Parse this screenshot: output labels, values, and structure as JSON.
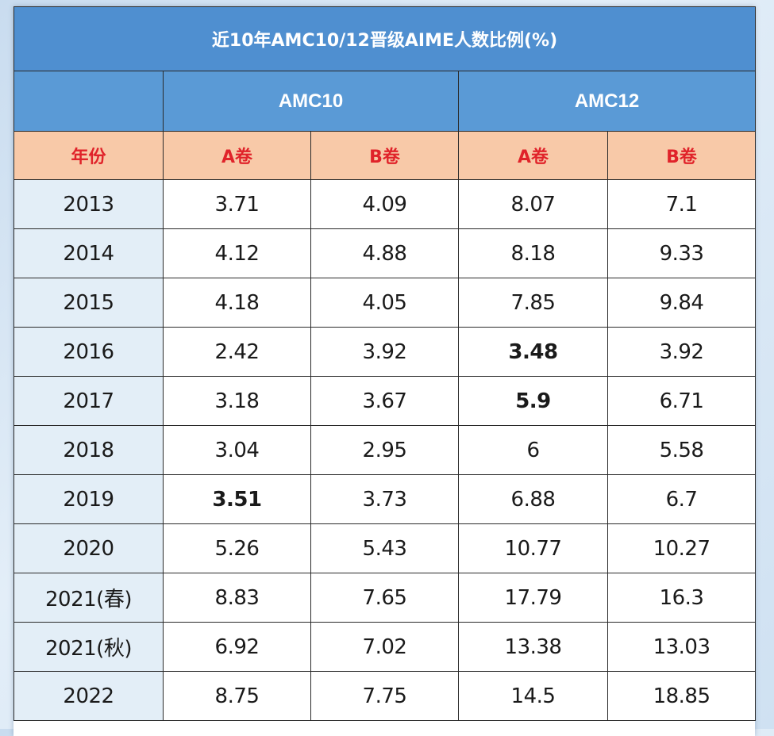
{
  "title": "近10年AMC10/12晋级AIME人数比例(%)",
  "groups": [
    "AMC10",
    "AMC12"
  ],
  "subheaders": [
    "年份",
    "A卷",
    "B卷",
    "A卷",
    "B卷"
  ],
  "rows": [
    {
      "year": "2013",
      "values": [
        "3.71",
        "4.09",
        "8.07",
        "7.1"
      ]
    },
    {
      "year": "2014",
      "values": [
        "4.12",
        "4.88",
        "8.18",
        "9.33"
      ]
    },
    {
      "year": "2015",
      "values": [
        "4.18",
        "4.05",
        "7.85",
        "9.84"
      ]
    },
    {
      "year": "2016",
      "values": [
        "2.42",
        "3.92",
        "3.48",
        "3.92"
      ]
    },
    {
      "year": "2017",
      "values": [
        "3.18",
        "3.67",
        "5.9",
        "6.71"
      ]
    },
    {
      "year": "2018",
      "values": [
        "3.04",
        "2.95",
        "6",
        "5.58"
      ]
    },
    {
      "year": "2019",
      "values": [
        "3.51",
        "3.73",
        "6.88",
        "6.7"
      ]
    },
    {
      "year": "2020",
      "values": [
        "5.26",
        "5.43",
        "10.77",
        "10.27"
      ]
    },
    {
      "year": "2021(春)",
      "values": [
        "8.83",
        "7.65",
        "17.79",
        "16.3"
      ]
    },
    {
      "year": "2021(秋)",
      "values": [
        "6.92",
        "7.02",
        "13.38",
        "13.03"
      ]
    },
    {
      "year": "2022",
      "values": [
        "8.75",
        "7.75",
        "14.5",
        "18.85"
      ]
    }
  ],
  "colors": {
    "header_blue": "#4f8fd0",
    "subheader_peach": "#f8c9a8",
    "subheader_text_red": "#e0232a",
    "year_column_bg": "#e3eef7"
  }
}
